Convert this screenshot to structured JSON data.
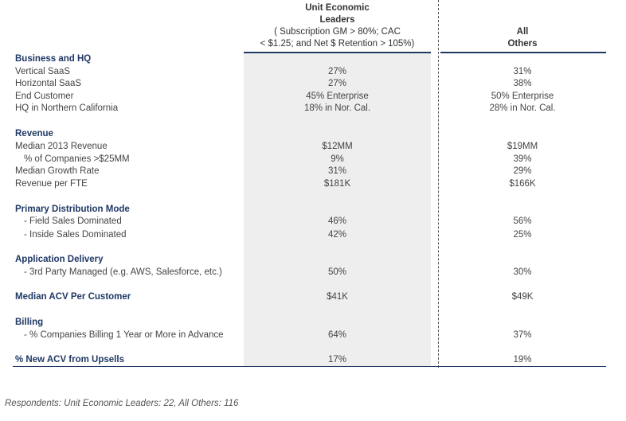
{
  "header": {
    "col1_title_1": "Unit Economic",
    "col1_title_2": "Leaders",
    "col1_sub_1": "( Subscription GM > 80%; CAC",
    "col1_sub_2": "< $1.25; and Net $ Retention > 105%)",
    "col2_title_1": "All",
    "col2_title_2": "Others"
  },
  "rows": [
    {
      "label": "Business and HQ",
      "v1": "",
      "v2": ""
    },
    {
      "label": "Vertical SaaS",
      "v1": "27%",
      "v2": "31%"
    },
    {
      "label": "Horizontal SaaS",
      "v1": "27%",
      "v2": "38%"
    },
    {
      "label": "End Customer",
      "v1": "45% Enterprise",
      "v2": "50% Enterprise"
    },
    {
      "label": "HQ in Northern California",
      "v1": "18% in Nor. Cal.",
      "v2": "28% in Nor. Cal."
    },
    {
      "label": "Revenue",
      "v1": "",
      "v2": ""
    },
    {
      "label": "Median 2013 Revenue",
      "v1": "$12MM",
      "v2": "$19MM"
    },
    {
      "label": "% of Companies >$25MM",
      "v1": "9%",
      "v2": "39%"
    },
    {
      "label": "Median Growth Rate",
      "v1": "31%",
      "v2": "29%"
    },
    {
      "label": "Revenue per FTE",
      "v1": "$181K",
      "v2": "$166K"
    },
    {
      "label": "Primary Distribution Mode",
      "v1": "",
      "v2": ""
    },
    {
      "label": "- Field Sales Dominated",
      "v1": "46%",
      "v2": "56%"
    },
    {
      "label": "- Inside Sales Dominated",
      "v1": "42%",
      "v2": "25%"
    },
    {
      "label": "Application Delivery",
      "v1": "",
      "v2": ""
    },
    {
      "label": "- 3rd Party Managed (e.g. AWS, Salesforce, etc.)",
      "v1": "50%",
      "v2": "30%"
    },
    {
      "label": "Median ACV Per Customer",
      "v1": "$41K",
      "v2": "$49K"
    },
    {
      "label": "Billing",
      "v1": "",
      "v2": ""
    },
    {
      "label": "- % Companies Billing 1 Year or More in Advance",
      "v1": "64%",
      "v2": "37%"
    },
    {
      "label": "% New ACV from Upsells",
      "v1": "17%",
      "v2": "19%"
    }
  ],
  "footnote": "Respondents: Unit Economic Leaders: 22, All Others: 116",
  "colors": {
    "section_heading": "#1f3864",
    "shaded_column": "#eeeeee",
    "rule": "#1f3864"
  }
}
